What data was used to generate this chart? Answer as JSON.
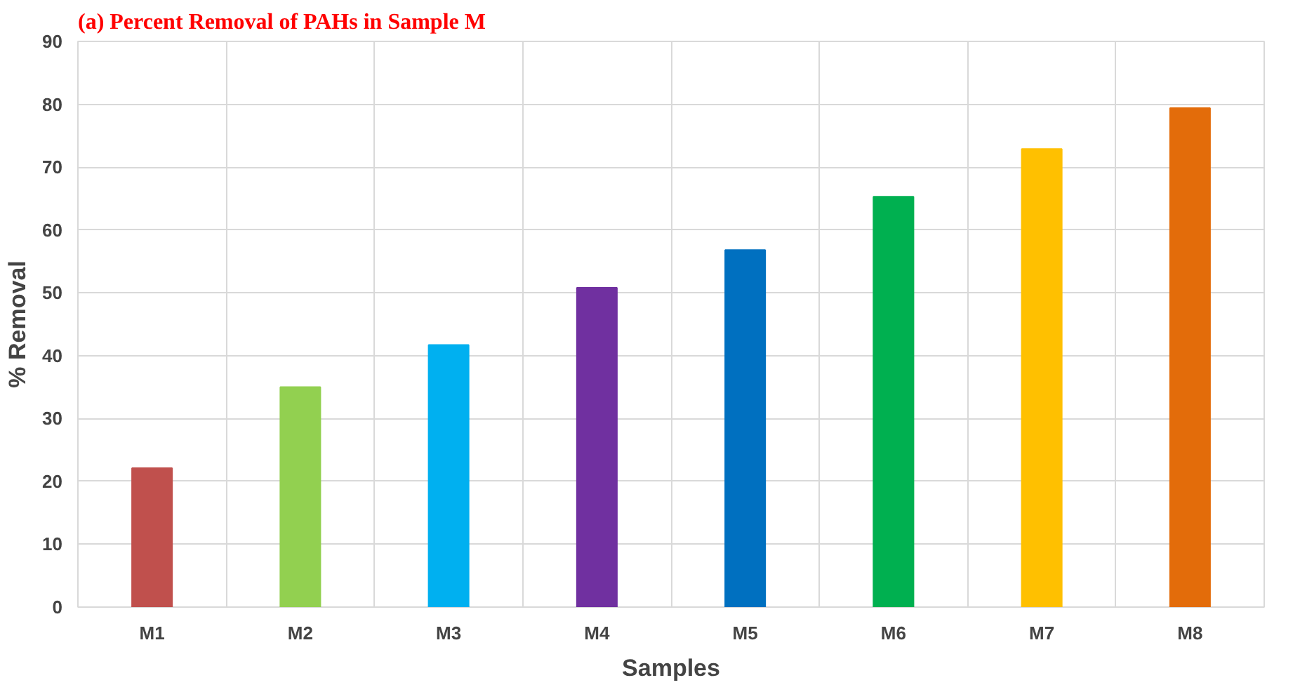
{
  "chart_data": {
    "type": "bar",
    "title": "(a) Percent Removal of PAHs in Sample M",
    "xlabel": "Samples",
    "ylabel": "% Removal",
    "categories": [
      "M1",
      "M2",
      "M3",
      "M4",
      "M5",
      "M6",
      "M7",
      "M8"
    ],
    "values": [
      22.1,
      35,
      41.7,
      50.8,
      56.8,
      65.3,
      72.9,
      79.4
    ],
    "colors": [
      "#c0504d",
      "#92d050",
      "#00b0f0",
      "#7030a0",
      "#0070c0",
      "#00b050",
      "#ffc000",
      "#e36c0a"
    ],
    "ylim": [
      0,
      90
    ],
    "yticks": [
      0,
      10,
      20,
      30,
      40,
      50,
      60,
      70,
      80,
      90
    ],
    "grid": true
  }
}
